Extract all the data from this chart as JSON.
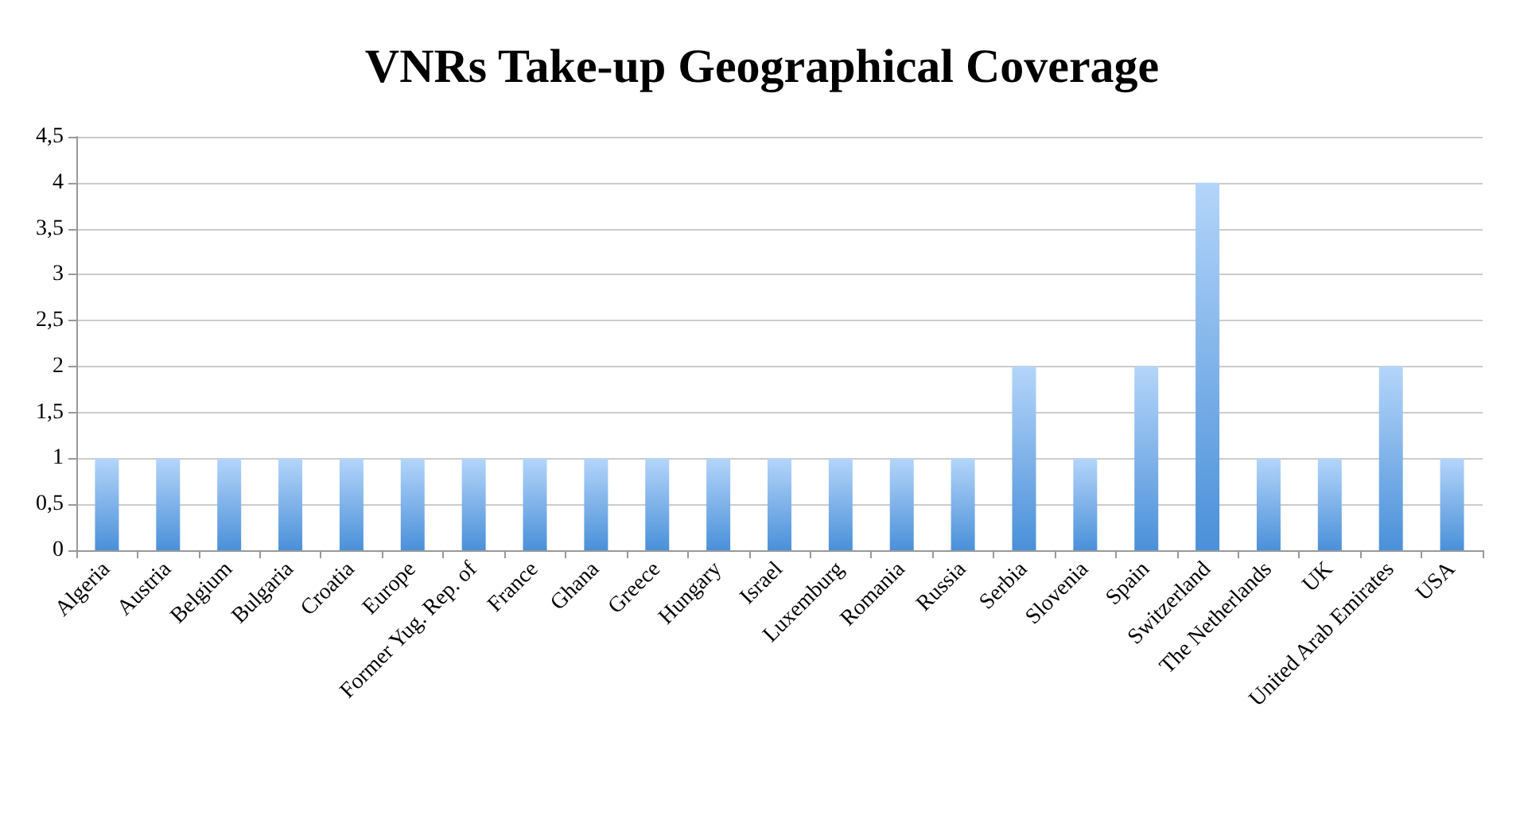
{
  "chart_data": {
    "type": "bar",
    "title": "VNRs Take-up Geographical Coverage",
    "categories": [
      "Algeria",
      "Austria",
      "Belgium",
      "Bulgaria",
      "Croatia",
      "Europe",
      "Former Yug. Rep. of",
      "France",
      "Ghana",
      "Greece",
      "Hungary",
      "Israel",
      "Luxemburg",
      "Romania",
      "Russia",
      "Serbia",
      "Slovenia",
      "Spain",
      "Switzerland",
      "The Netherlands",
      "UK",
      "United Arab Emirates",
      "USA"
    ],
    "values": [
      1,
      1,
      1,
      1,
      1,
      1,
      1,
      1,
      1,
      1,
      1,
      1,
      1,
      1,
      1,
      2,
      1,
      2,
      4,
      1,
      1,
      2,
      1
    ],
    "color": "#4a90d9",
    "ylim": [
      0,
      4.5
    ],
    "yticks": [
      0,
      {
        "value": 0.5,
        "label": "0,5"
      },
      1,
      {
        "value": 1.5,
        "label": "1,5"
      },
      2,
      {
        "value": 2.5,
        "label": "2,5"
      },
      3,
      {
        "value": 3.5,
        "label": "3,5"
      },
      4,
      {
        "value": 4.5,
        "label": "4,5"
      }
    ],
    "grid": "y"
  }
}
